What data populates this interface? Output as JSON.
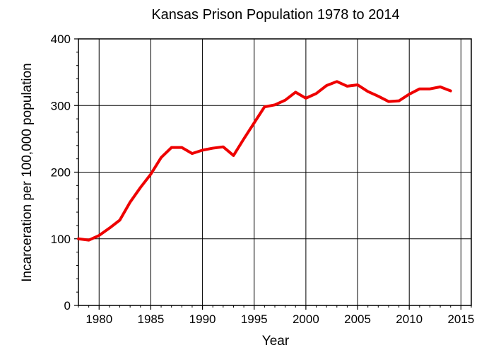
{
  "chart_data": {
    "type": "line",
    "title": "Kansas Prison Population 1978 to 2014",
    "xlabel": "Year",
    "ylabel": "Incarceration per 100,000 population",
    "xlim": [
      1978,
      2016
    ],
    "ylim": [
      0,
      400
    ],
    "x_ticks": [
      1980,
      1985,
      1990,
      1995,
      2000,
      2005,
      2010,
      2015
    ],
    "y_ticks": [
      0,
      100,
      200,
      300,
      400
    ],
    "grid": true,
    "series": [
      {
        "color": "#ee0000",
        "x": [
          1978,
          1979,
          1980,
          1981,
          1982,
          1983,
          1984,
          1985,
          1986,
          1987,
          1988,
          1989,
          1990,
          1991,
          1992,
          1993,
          1994,
          1995,
          1996,
          1997,
          1998,
          1999,
          2000,
          2001,
          2002,
          2003,
          2004,
          2005,
          2006,
          2007,
          2008,
          2009,
          2010,
          2011,
          2012,
          2013,
          2014
        ],
        "values": [
          100,
          98,
          105,
          116,
          128,
          155,
          177,
          197,
          222,
          237,
          237,
          228,
          233,
          236,
          238,
          225,
          250,
          274,
          298,
          301,
          308,
          320,
          311,
          318,
          330,
          336,
          329,
          331,
          321,
          314,
          306,
          307,
          317,
          325,
          325,
          328,
          322
        ]
      }
    ]
  }
}
